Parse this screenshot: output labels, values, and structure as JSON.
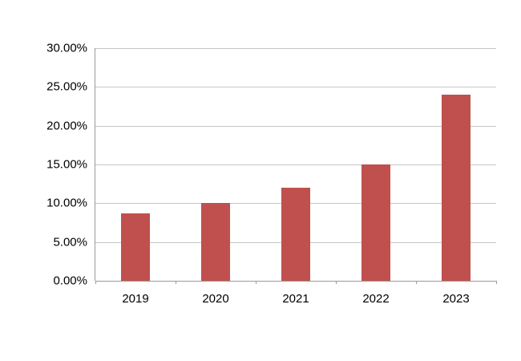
{
  "chart_data": {
    "type": "bar",
    "title": "",
    "xlabel": "",
    "ylabel": "",
    "categories": [
      "2019",
      "2020",
      "2021",
      "2022",
      "2023"
    ],
    "values": [
      8.7,
      10.0,
      12.0,
      15.0,
      24.0
    ],
    "ylim": [
      0,
      30
    ],
    "ytick_step": 5,
    "ytick_labels": [
      "0.00%",
      "5.00%",
      "10.00%",
      "15.00%",
      "20.00%",
      "25.00%",
      "30.00%"
    ],
    "grid": "horizontal",
    "legend": "none",
    "bar_color": "#c0504d",
    "gridline_color": "#c6c6c6",
    "axis_color": "#9a9a9a"
  }
}
